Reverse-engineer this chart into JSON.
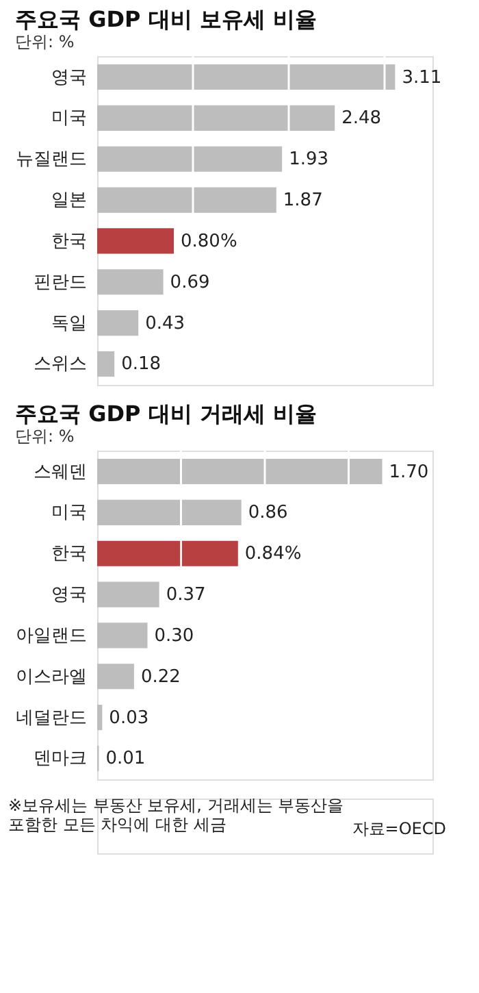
{
  "chart_data": [
    {
      "type": "bar",
      "orientation": "horizontal",
      "title": "주요국 GDP 대비 보유세 비율",
      "subtitle": "단위: %",
      "categories": [
        "영국",
        "미국",
        "뉴질랜드",
        "일본",
        "한국",
        "핀란드",
        "독일",
        "스위스"
      ],
      "values": [
        3.11,
        2.48,
        1.93,
        1.87,
        0.8,
        0.69,
        0.43,
        0.18
      ],
      "value_labels": [
        "3.11",
        "2.48",
        "1.93",
        "1.87",
        "0.80%",
        "0.69",
        "0.43",
        "0.18"
      ],
      "colors": [
        "#bdbdbd",
        "#bdbdbd",
        "#bdbdbd",
        "#bdbdbd",
        "#b94040",
        "#bdbdbd",
        "#bdbdbd",
        "#bdbdbd"
      ],
      "xlim": [
        0,
        3.5
      ],
      "xticks": [
        {
          "value": 1,
          "label": null
        },
        {
          "value": 2,
          "label": null
        },
        {
          "value": 3,
          "label": null
        }
      ],
      "grid": "x",
      "tick_labels": "y"
    },
    {
      "type": "bar",
      "orientation": "horizontal",
      "title": "주요국 GDP 대비 거래세 비율",
      "subtitle": "단위: %",
      "categories": [
        "스웨덴",
        "미국",
        "한국",
        "영국",
        "아일랜드",
        "이스라엘",
        "네덜란드",
        "덴마크"
      ],
      "values": [
        1.7,
        0.86,
        0.84,
        0.37,
        0.3,
        0.22,
        0.03,
        0.01
      ],
      "value_labels": [
        "1.70",
        "0.86",
        "0.84%",
        "0.37",
        "0.30",
        "0.22",
        "0.03",
        "0.01"
      ],
      "colors": [
        "#bdbdbd",
        "#bdbdbd",
        "#b94040",
        "#bdbdbd",
        "#bdbdbd",
        "#bdbdbd",
        "#bdbdbd",
        "#bdbdbd"
      ],
      "xlim": [
        0,
        2.0
      ],
      "xticks": [
        {
          "value": 0.5,
          "label": null
        },
        {
          "value": 1.0,
          "label": null
        },
        {
          "value": 1.5,
          "label": null
        }
      ],
      "grid": "x",
      "tick_labels": "y",
      "annotations": [
        "※보유세는 부동산 보유세, 거래세는 부동산을 포함한 모든 차익에 대한 세금",
        "자료=OECD"
      ]
    }
  ]
}
